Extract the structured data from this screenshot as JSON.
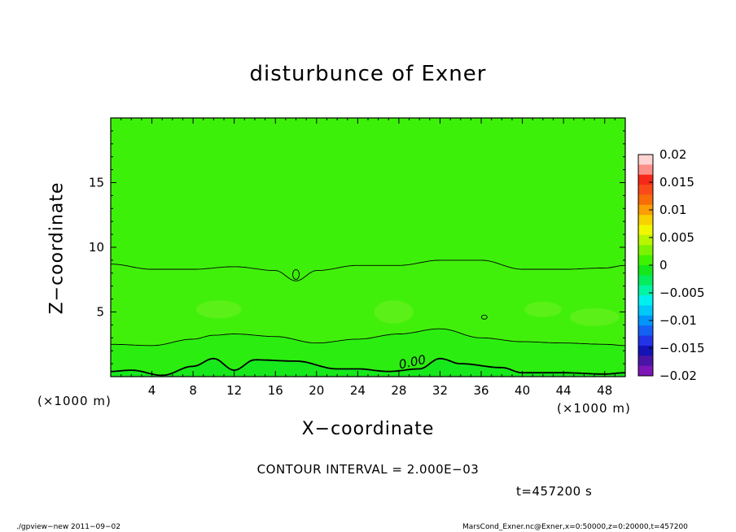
{
  "header": {
    "title": "disturbunce of Exner"
  },
  "axes": {
    "xlabel": "X−coordinate",
    "ylabel": "Z−coordinate",
    "x_unit_left": "(×1000 m)",
    "x_unit_right": "(×1000 m)"
  },
  "annotations": {
    "contour_interval": "CONTOUR INTERVAL = 2.000E−03",
    "time": "t=457200 s",
    "footer_left": "./gpview−new   2011−09−02",
    "footer_right": "MarsCond_Exner.nc@Exner,x=0:50000,z=0:20000,t=457200",
    "contour_label": "0.00"
  },
  "chart_data": {
    "type": "heatmap",
    "title": "disturbunce of Exner",
    "xlabel": "X−coordinate",
    "ylabel": "Z−coordinate",
    "xlim": [
      0,
      50
    ],
    "ylim": [
      0,
      20
    ],
    "x_ticks": [
      4,
      8,
      12,
      16,
      20,
      24,
      28,
      32,
      36,
      40,
      44,
      48
    ],
    "y_ticks": [
      5,
      10,
      15
    ],
    "colorbar": {
      "ticks": [
        "0.02",
        "0.015",
        "0.01",
        "0.005",
        "0",
        "−0.005",
        "−0.01",
        "−0.015",
        "−0.02"
      ],
      "range": [
        -0.02,
        0.02
      ],
      "colors": [
        "#fdd4d2",
        "#fd8f88",
        "#f72818",
        "#fb4a1a",
        "#f86d08",
        "#fb9d04",
        "#f7d100",
        "#f1f700",
        "#b9f500",
        "#7df200",
        "#3ef200",
        "#14e81b",
        "#05ec5d",
        "#03f3a4",
        "#00f0f0",
        "#00c8f8",
        "#0095fa",
        "#1461f4",
        "#2333e8",
        "#1413b6",
        "#4a15a6",
        "#7d16b6"
      ]
    },
    "contour_interval": 0.002,
    "contour_lines": [
      {
        "label": "",
        "level": 0.002,
        "x": [
          0,
          4,
          8,
          12,
          16,
          18,
          20,
          24,
          28,
          32,
          36,
          40,
          44,
          48,
          50
        ],
        "z": [
          8.7,
          8.3,
          8.3,
          8.5,
          8.2,
          7.4,
          8.2,
          8.6,
          8.6,
          9.0,
          9.0,
          8.3,
          8.3,
          8.4,
          8.6
        ]
      },
      {
        "label": "",
        "level": 0.0,
        "x": [
          0,
          4,
          8,
          10,
          12,
          16,
          20,
          24,
          28,
          32,
          36,
          40,
          44,
          48,
          50
        ],
        "z": [
          2.5,
          2.4,
          2.9,
          3.2,
          3.3,
          3.1,
          2.6,
          2.9,
          3.3,
          3.7,
          3.0,
          2.7,
          2.6,
          2.5,
          2.4
        ]
      },
      {
        "label": "0.00",
        "level": -0.002,
        "x": [
          0,
          2,
          5,
          8,
          10,
          12,
          14,
          18,
          22,
          24,
          27,
          30,
          32,
          34,
          38,
          40,
          44,
          48,
          50
        ],
        "z": [
          0.4,
          0.5,
          0.1,
          0.8,
          1.4,
          0.5,
          1.3,
          1.2,
          0.6,
          0.6,
          0.4,
          0.6,
          1.4,
          1.0,
          0.7,
          0.3,
          0.3,
          0.2,
          0.3
        ]
      }
    ]
  }
}
